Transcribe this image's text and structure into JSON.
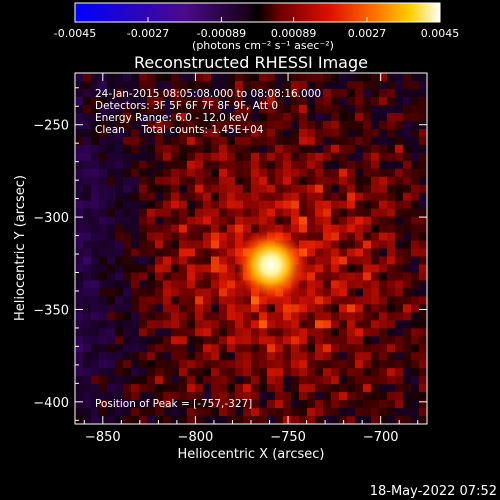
{
  "colorbar": {
    "ticks": [
      "-0.0045",
      "-0.0027",
      "-0.00089",
      "0.00089",
      "0.0027",
      "0.0045"
    ],
    "units": "(photons cm⁻² s⁻¹ asec⁻²)",
    "range": [
      -0.0045,
      0.0045
    ]
  },
  "chart_data": {
    "type": "heatmap",
    "title": "Reconstructed RHESSI Image",
    "xlabel": "Heliocentric X (arcsec)",
    "ylabel": "Heliocentric Y (arcsec)",
    "xlim": [
      -865,
      -675
    ],
    "ylim": [
      -412,
      -222
    ],
    "x_ticks": [
      -850,
      -800,
      -750,
      -700
    ],
    "y_ticks": [
      -250,
      -300,
      -350,
      -400
    ],
    "annotations": [
      "24-Jan-2015 08:05:08.000 to 08:08:16.000",
      "Detectors: 3F 5F 6F 7F 8F 9F, Att 0",
      "Energy Range: 6.0 - 12.0 keV",
      "Clean     Total counts: 1.45E+04"
    ],
    "peak_label": "Position of Peak = [-757,-327]",
    "peak": {
      "x": -757,
      "y": -327
    },
    "colormap": "RHESSI blue-purple-red-yellow-white"
  },
  "timestamp": "18-May-2022 07:52"
}
